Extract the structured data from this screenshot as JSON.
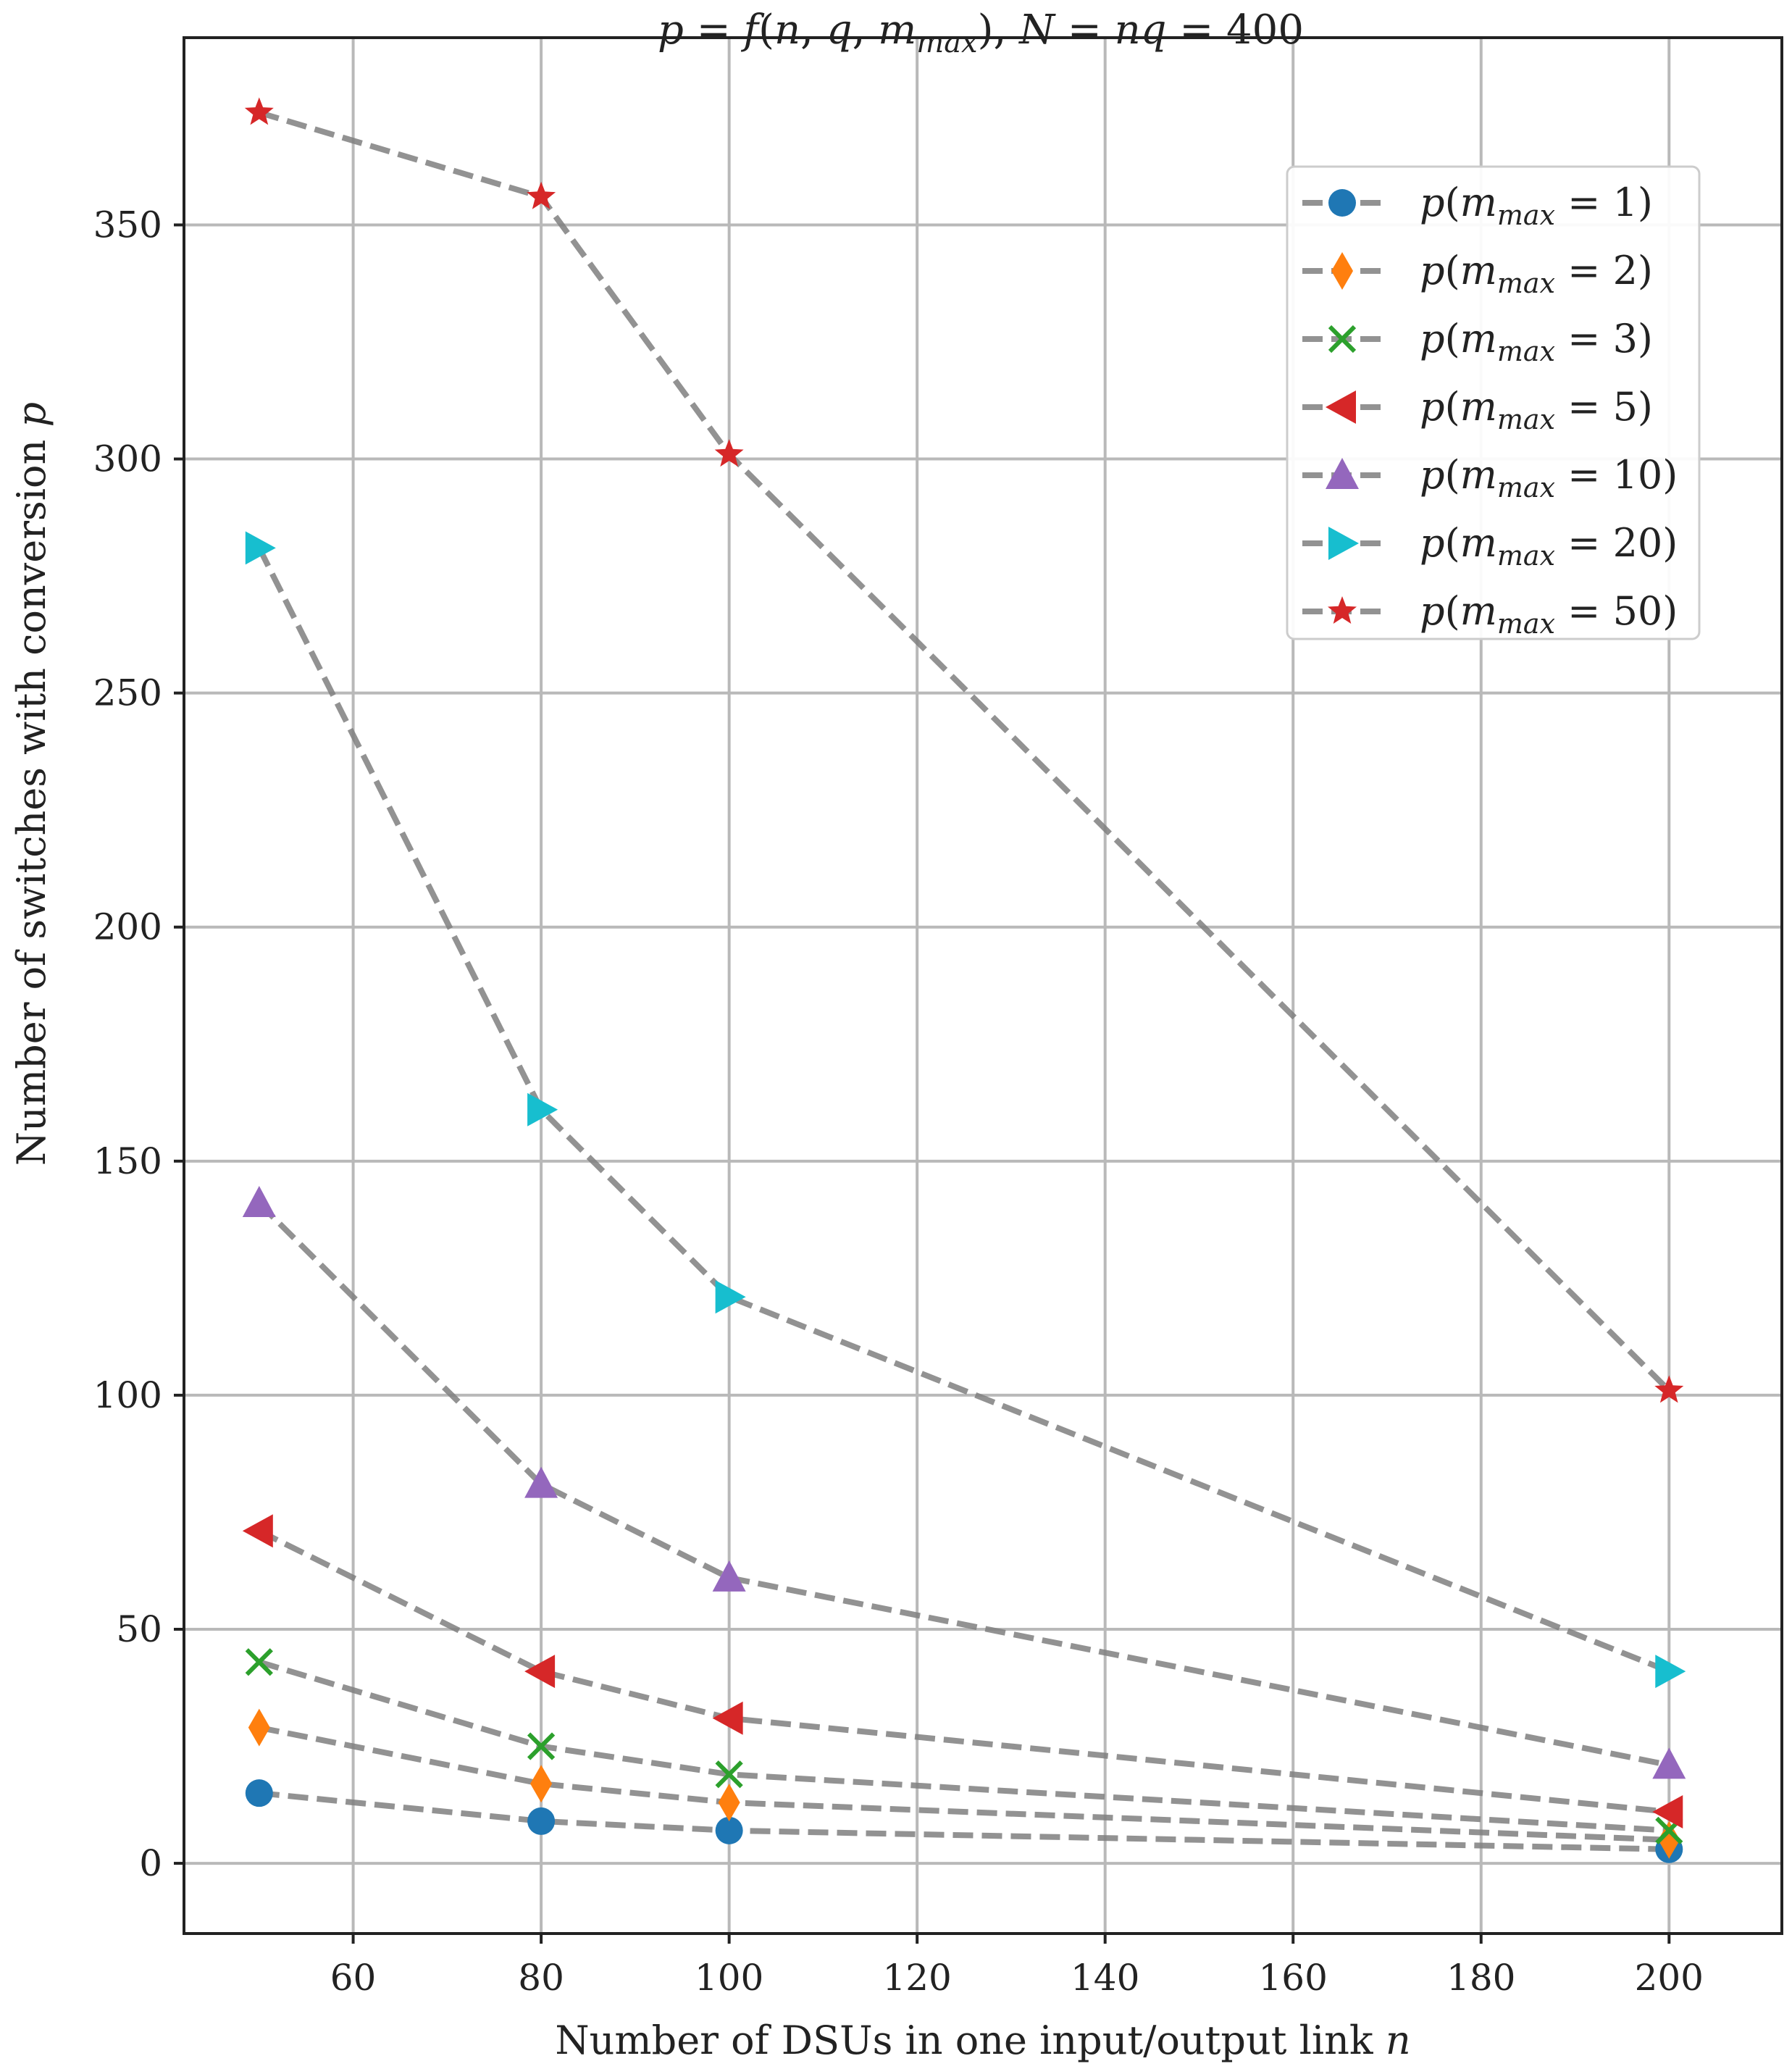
{
  "chart_data": {
    "type": "line",
    "title": "p = f(n, q, m_max), N = nq = 400",
    "xlabel": "Number of DSUs in one input/output link n",
    "ylabel": "Number of switches with conversion p",
    "x": [
      50,
      80,
      100,
      200
    ],
    "xlim": [
      42,
      212
    ],
    "ylim": [
      -15,
      390
    ],
    "xticks": [
      60,
      80,
      100,
      120,
      140,
      160,
      180,
      200
    ],
    "yticks": [
      0,
      50,
      100,
      150,
      200,
      250,
      300,
      350
    ],
    "grid": true,
    "legend_position": "top-right",
    "series": [
      {
        "name": "p(m_max = 1)",
        "values": [
          15,
          9,
          7,
          3
        ],
        "marker": "circle",
        "color": "#1f77b4"
      },
      {
        "name": "p(m_max = 2)",
        "values": [
          29,
          17,
          13,
          5
        ],
        "marker": "thin-diamond",
        "color": "#ff7f0e"
      },
      {
        "name": "p(m_max = 3)",
        "values": [
          43,
          25,
          19,
          7
        ],
        "marker": "x",
        "color": "#2ca02c"
      },
      {
        "name": "p(m_max = 5)",
        "values": [
          71,
          41,
          31,
          11
        ],
        "marker": "triangle-left",
        "color": "#d62728"
      },
      {
        "name": "p(m_max = 10)",
        "values": [
          141,
          81,
          61,
          21
        ],
        "marker": "triangle-up",
        "color": "#9467bd"
      },
      {
        "name": "p(m_max = 20)",
        "values": [
          281,
          161,
          121,
          41
        ],
        "marker": "triangle-right",
        "color": "#17becf"
      },
      {
        "name": "p(m_max = 50)",
        "values": [
          374,
          356,
          301,
          101
        ],
        "marker": "star",
        "color": "#d62728"
      }
    ]
  }
}
